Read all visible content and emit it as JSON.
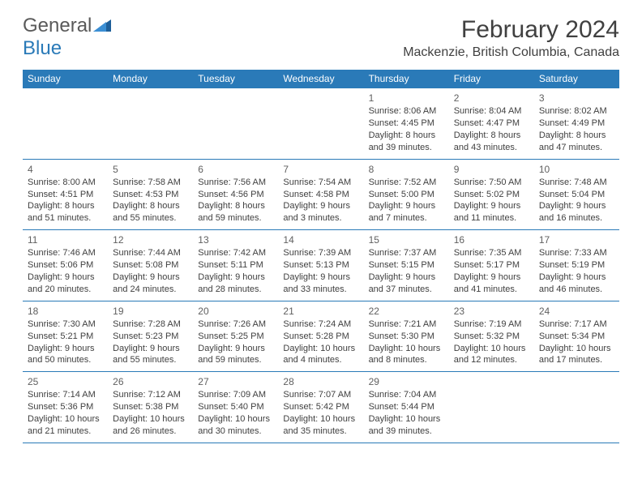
{
  "logo": {
    "word1": "General",
    "word2": "Blue"
  },
  "title": "February 2024",
  "location": "Mackenzie, British Columbia, Canada",
  "colors": {
    "header_bg": "#2a7ab8",
    "header_text": "#ffffff",
    "cell_border": "#2a7ab8",
    "text": "#404040",
    "logo_gray": "#5a5a5a",
    "logo_blue": "#2a7ab8",
    "background": "#ffffff"
  },
  "daysOfWeek": [
    "Sunday",
    "Monday",
    "Tuesday",
    "Wednesday",
    "Thursday",
    "Friday",
    "Saturday"
  ],
  "weeks": [
    [
      null,
      null,
      null,
      null,
      {
        "n": "1",
        "sr": "8:06 AM",
        "ss": "4:45 PM",
        "dl": "8 hours and 39 minutes."
      },
      {
        "n": "2",
        "sr": "8:04 AM",
        "ss": "4:47 PM",
        "dl": "8 hours and 43 minutes."
      },
      {
        "n": "3",
        "sr": "8:02 AM",
        "ss": "4:49 PM",
        "dl": "8 hours and 47 minutes."
      }
    ],
    [
      {
        "n": "4",
        "sr": "8:00 AM",
        "ss": "4:51 PM",
        "dl": "8 hours and 51 minutes."
      },
      {
        "n": "5",
        "sr": "7:58 AM",
        "ss": "4:53 PM",
        "dl": "8 hours and 55 minutes."
      },
      {
        "n": "6",
        "sr": "7:56 AM",
        "ss": "4:56 PM",
        "dl": "8 hours and 59 minutes."
      },
      {
        "n": "7",
        "sr": "7:54 AM",
        "ss": "4:58 PM",
        "dl": "9 hours and 3 minutes."
      },
      {
        "n": "8",
        "sr": "7:52 AM",
        "ss": "5:00 PM",
        "dl": "9 hours and 7 minutes."
      },
      {
        "n": "9",
        "sr": "7:50 AM",
        "ss": "5:02 PM",
        "dl": "9 hours and 11 minutes."
      },
      {
        "n": "10",
        "sr": "7:48 AM",
        "ss": "5:04 PM",
        "dl": "9 hours and 16 minutes."
      }
    ],
    [
      {
        "n": "11",
        "sr": "7:46 AM",
        "ss": "5:06 PM",
        "dl": "9 hours and 20 minutes."
      },
      {
        "n": "12",
        "sr": "7:44 AM",
        "ss": "5:08 PM",
        "dl": "9 hours and 24 minutes."
      },
      {
        "n": "13",
        "sr": "7:42 AM",
        "ss": "5:11 PM",
        "dl": "9 hours and 28 minutes."
      },
      {
        "n": "14",
        "sr": "7:39 AM",
        "ss": "5:13 PM",
        "dl": "9 hours and 33 minutes."
      },
      {
        "n": "15",
        "sr": "7:37 AM",
        "ss": "5:15 PM",
        "dl": "9 hours and 37 minutes."
      },
      {
        "n": "16",
        "sr": "7:35 AM",
        "ss": "5:17 PM",
        "dl": "9 hours and 41 minutes."
      },
      {
        "n": "17",
        "sr": "7:33 AM",
        "ss": "5:19 PM",
        "dl": "9 hours and 46 minutes."
      }
    ],
    [
      {
        "n": "18",
        "sr": "7:30 AM",
        "ss": "5:21 PM",
        "dl": "9 hours and 50 minutes."
      },
      {
        "n": "19",
        "sr": "7:28 AM",
        "ss": "5:23 PM",
        "dl": "9 hours and 55 minutes."
      },
      {
        "n": "20",
        "sr": "7:26 AM",
        "ss": "5:25 PM",
        "dl": "9 hours and 59 minutes."
      },
      {
        "n": "21",
        "sr": "7:24 AM",
        "ss": "5:28 PM",
        "dl": "10 hours and 4 minutes."
      },
      {
        "n": "22",
        "sr": "7:21 AM",
        "ss": "5:30 PM",
        "dl": "10 hours and 8 minutes."
      },
      {
        "n": "23",
        "sr": "7:19 AM",
        "ss": "5:32 PM",
        "dl": "10 hours and 12 minutes."
      },
      {
        "n": "24",
        "sr": "7:17 AM",
        "ss": "5:34 PM",
        "dl": "10 hours and 17 minutes."
      }
    ],
    [
      {
        "n": "25",
        "sr": "7:14 AM",
        "ss": "5:36 PM",
        "dl": "10 hours and 21 minutes."
      },
      {
        "n": "26",
        "sr": "7:12 AM",
        "ss": "5:38 PM",
        "dl": "10 hours and 26 minutes."
      },
      {
        "n": "27",
        "sr": "7:09 AM",
        "ss": "5:40 PM",
        "dl": "10 hours and 30 minutes."
      },
      {
        "n": "28",
        "sr": "7:07 AM",
        "ss": "5:42 PM",
        "dl": "10 hours and 35 minutes."
      },
      {
        "n": "29",
        "sr": "7:04 AM",
        "ss": "5:44 PM",
        "dl": "10 hours and 39 minutes."
      },
      null,
      null
    ]
  ],
  "labels": {
    "sunrise": "Sunrise: ",
    "sunset": "Sunset: ",
    "daylight": "Daylight: "
  }
}
